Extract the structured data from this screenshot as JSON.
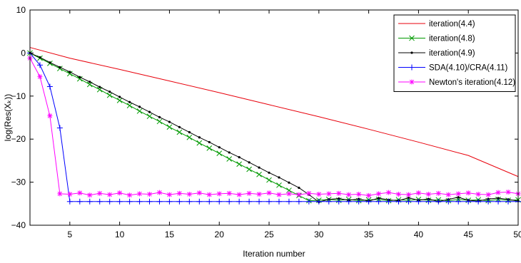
{
  "chart_data": {
    "type": "line",
    "xlabel": "Iteration number",
    "ylabel": "log(Res(Xₖ))",
    "xlim": [
      1,
      50
    ],
    "ylim": [
      -40,
      10
    ],
    "xticks": [
      5,
      10,
      15,
      20,
      25,
      30,
      35,
      40,
      45,
      50
    ],
    "yticks": [
      10,
      0,
      -10,
      -20,
      -30,
      -40
    ],
    "xtick_labels": [
      "5",
      "10",
      "15",
      "20",
      "25",
      "30",
      "35",
      "40",
      "45",
      "50"
    ],
    "ytick_labels": [
      "10",
      "0",
      "−10",
      "−20",
      "−30",
      "−40"
    ],
    "legend_position": "top-right",
    "grid": false,
    "series": [
      {
        "name": "iteration(4.4)",
        "color": "#e8000b",
        "marker": "none",
        "x": [
          1,
          5,
          10,
          15,
          20,
          25,
          30,
          35,
          40,
          45,
          50
        ],
        "y": [
          1.3,
          -1.2,
          -3.8,
          -6.5,
          -9.2,
          -12.0,
          -14.8,
          -17.7,
          -20.7,
          -23.8,
          -28.7
        ]
      },
      {
        "name": "iteration(4.8)",
        "color": "#009900",
        "marker": "x",
        "x": [
          1,
          2,
          3,
          4,
          5,
          6,
          7,
          8,
          9,
          10,
          11,
          12,
          13,
          14,
          15,
          16,
          17,
          18,
          19,
          20,
          21,
          22,
          23,
          24,
          25,
          26,
          27,
          28,
          29,
          30,
          31,
          32,
          33,
          34,
          35,
          36,
          37,
          38,
          39,
          40,
          41,
          42,
          43,
          44,
          45,
          46,
          47,
          48,
          49,
          50
        ],
        "y": [
          0.0,
          -1.2,
          -2.4,
          -3.6,
          -4.8,
          -6.0,
          -7.3,
          -8.5,
          -9.8,
          -11.0,
          -12.2,
          -13.5,
          -14.7,
          -15.9,
          -17.2,
          -18.4,
          -19.6,
          -20.9,
          -22.1,
          -23.3,
          -24.6,
          -25.8,
          -27.0,
          -28.2,
          -29.5,
          -30.7,
          -31.9,
          -33.1,
          -34.3,
          -34.2,
          -34.0,
          -34.2,
          -34.0,
          -34.3,
          -34.1,
          -34.0,
          -34.3,
          -34.1,
          -34.2,
          -34.0,
          -34.2,
          -34.1,
          -34.3,
          -34.0,
          -34.2,
          -34.1,
          -34.3,
          -34.0,
          -34.2,
          -34.1
        ]
      },
      {
        "name": "iteration(4.9)",
        "color": "#000000",
        "marker": "dot",
        "x": [
          1,
          2,
          3,
          4,
          5,
          6,
          7,
          8,
          9,
          10,
          11,
          12,
          13,
          14,
          15,
          16,
          17,
          18,
          19,
          20,
          21,
          22,
          23,
          24,
          25,
          26,
          27,
          28,
          29,
          30,
          31,
          32,
          33,
          34,
          35,
          36,
          37,
          38,
          39,
          40,
          41,
          42,
          43,
          44,
          45,
          46,
          47,
          48,
          49,
          50
        ],
        "y": [
          0.0,
          -1.0,
          -2.2,
          -3.3,
          -4.4,
          -5.6,
          -6.7,
          -7.9,
          -9.0,
          -10.2,
          -11.4,
          -12.5,
          -13.7,
          -14.9,
          -16.0,
          -17.2,
          -18.4,
          -19.6,
          -20.7,
          -21.9,
          -23.1,
          -24.2,
          -25.4,
          -26.6,
          -27.8,
          -28.9,
          -30.1,
          -31.3,
          -32.9,
          -34.6,
          -34.0,
          -33.8,
          -34.2,
          -33.9,
          -34.4,
          -33.7,
          -34.1,
          -34.3,
          -33.6,
          -34.2,
          -33.9,
          -34.5,
          -34.0,
          -33.5,
          -34.2,
          -34.4,
          -33.9,
          -33.7,
          -34.0,
          -34.4
        ]
      },
      {
        "name": "SDA(4.10)/CRA(4.11)",
        "color": "#0000ff",
        "marker": "plus",
        "x": [
          1,
          2,
          3,
          4,
          5,
          6,
          7,
          8,
          9,
          10,
          11,
          12,
          13,
          14,
          15,
          16,
          17,
          18,
          19,
          20,
          21,
          22,
          23,
          24,
          25,
          26,
          27,
          28,
          29,
          30,
          31,
          32,
          33,
          34,
          35,
          36,
          37,
          38,
          39,
          40,
          41,
          42,
          43,
          44,
          45,
          46,
          47,
          48,
          49,
          50
        ],
        "y": [
          0.0,
          -2.8,
          -7.8,
          -17.4,
          -34.5,
          -34.5,
          -34.5,
          -34.5,
          -34.5,
          -34.5,
          -34.5,
          -34.5,
          -34.5,
          -34.5,
          -34.5,
          -34.5,
          -34.5,
          -34.5,
          -34.5,
          -34.5,
          -34.5,
          -34.5,
          -34.5,
          -34.5,
          -34.5,
          -34.5,
          -34.5,
          -34.5,
          -34.5,
          -34.5,
          -34.5,
          -34.5,
          -34.5,
          -34.5,
          -34.5,
          -34.5,
          -34.5,
          -34.5,
          -34.5,
          -34.5,
          -34.5,
          -34.5,
          -34.5,
          -34.5,
          -34.5,
          -34.5,
          -34.5,
          -34.5,
          -34.5,
          -34.5
        ]
      },
      {
        "name": "Newton's iteration(4.12)",
        "color": "#ff00ff",
        "marker": "star",
        "x": [
          1,
          2,
          3,
          4,
          5,
          6,
          7,
          8,
          9,
          10,
          11,
          12,
          13,
          14,
          15,
          16,
          17,
          18,
          19,
          20,
          21,
          22,
          23,
          24,
          25,
          26,
          27,
          28,
          29,
          30,
          31,
          32,
          33,
          34,
          35,
          36,
          37,
          38,
          39,
          40,
          41,
          42,
          43,
          44,
          45,
          46,
          47,
          48,
          49,
          50
        ],
        "y": [
          -1.2,
          -5.5,
          -14.6,
          -32.7,
          -32.8,
          -32.5,
          -33.0,
          -32.6,
          -32.9,
          -32.5,
          -33.0,
          -32.7,
          -32.8,
          -32.4,
          -32.9,
          -32.6,
          -32.8,
          -32.5,
          -32.9,
          -32.7,
          -32.6,
          -32.9,
          -32.6,
          -32.8,
          -32.5,
          -32.9,
          -32.7,
          -32.9,
          -32.6,
          -32.8,
          -32.7,
          -32.6,
          -32.9,
          -32.8,
          -33.1,
          -32.7,
          -32.4,
          -32.8,
          -32.9,
          -32.5,
          -32.8,
          -32.6,
          -32.9,
          -32.7,
          -32.5,
          -32.8,
          -32.9,
          -32.4,
          -32.3,
          -32.7
        ]
      }
    ]
  }
}
